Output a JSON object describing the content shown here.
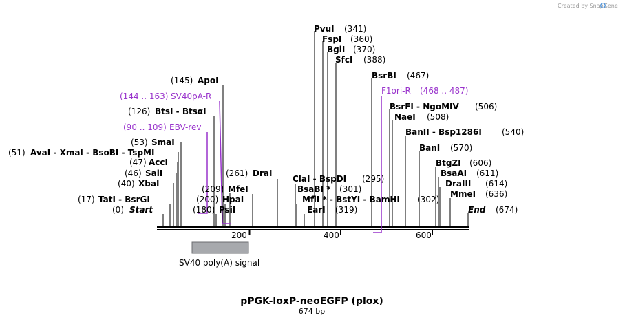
{
  "credit": "Created by SnapGene",
  "title": "pPGK-loxP-neoEGFP (plox)",
  "length_label": "674 bp",
  "axis": {
    "max_bp": 674,
    "ticks": [
      200,
      400,
      600
    ]
  },
  "feature": {
    "name": "SV40 poly(A) signal",
    "start": 76,
    "end": 199
  },
  "sites": [
    {
      "name": "AvaI - XmaI - BsoBI - TspMI",
      "pos_label": "(51)",
      "bp": 51
    },
    {
      "name": "AccI",
      "pos_label": "(47)",
      "bp": 47
    },
    {
      "name": "SalI",
      "pos_label": "(46)",
      "bp": 46
    },
    {
      "name": "XbaI",
      "pos_label": "(40)",
      "bp": 40
    },
    {
      "name": "TatI - BsrGI",
      "pos_label": "(17)",
      "bp": 17
    },
    {
      "name": "Start",
      "pos_label": "(0)",
      "bp": 0
    },
    {
      "name": "SmaI",
      "pos_label": "(53)",
      "bp": 53
    },
    {
      "name": "BtsI - BtsαI",
      "pos_label": "(126)",
      "bp": 126
    },
    {
      "name": "ApoI",
      "pos_label": "(145)",
      "bp": 145
    },
    {
      "name": "MfeI",
      "pos_label": "(209)",
      "bp": 209
    },
    {
      "name": "HpaI",
      "pos_label": "(200)",
      "bp": 200
    },
    {
      "name": "PsiI",
      "pos_label": "(180)",
      "bp": 180
    },
    {
      "name": "DraI",
      "pos_label": "(261)",
      "bp": 261
    },
    {
      "name": "ClaI - BspDI",
      "pos_label": "(295)",
      "bp": 295
    },
    {
      "name": "BsaBI *",
      "pos_label": "(301)",
      "bp": 301
    },
    {
      "name": "MflI * - BstYI - BamHI",
      "pos_label": "(302)",
      "bp": 302
    },
    {
      "name": "EarI",
      "pos_label": "(319)",
      "bp": 319
    },
    {
      "name": "PvuI",
      "pos_label": "(341)",
      "bp": 341
    },
    {
      "name": "FspI",
      "pos_label": "(360)",
      "bp": 360
    },
    {
      "name": "BglI",
      "pos_label": "(370)",
      "bp": 370
    },
    {
      "name": "SfcI",
      "pos_label": "(388)",
      "bp": 388
    },
    {
      "name": "BsrBI",
      "pos_label": "(467)",
      "bp": 467
    },
    {
      "name": "BsrFI - NgoMIV",
      "pos_label": "(506)",
      "bp": 506
    },
    {
      "name": "NaeI",
      "pos_label": "(508)",
      "bp": 508
    },
    {
      "name": "BanII - Bsp1286I",
      "pos_label": "(540)",
      "bp": 540
    },
    {
      "name": "BanI",
      "pos_label": "(570)",
      "bp": 570
    },
    {
      "name": "BtgZI",
      "pos_label": "(606)",
      "bp": 606
    },
    {
      "name": "BsaAI",
      "pos_label": "(611)",
      "bp": 611
    },
    {
      "name": "DraIII",
      "pos_label": "(614)",
      "bp": 614
    },
    {
      "name": "MmeI",
      "pos_label": "(636)",
      "bp": 636
    },
    {
      "name": "End",
      "pos_label": "(674)",
      "bp": 674
    }
  ],
  "primers": [
    {
      "name": "SV40pA-R",
      "range": "(144 .. 163)",
      "start": 144,
      "end": 163
    },
    {
      "name": "EBV-rev",
      "range": "(90 .. 109)",
      "start": 90,
      "end": 109
    },
    {
      "name": "F1ori-R",
      "range": "(468 .. 487)",
      "start": 468,
      "end": 487
    }
  ],
  "colors": {
    "primer": "#9933cc",
    "feature_fill": "#a7a9ad",
    "feature_stroke": "#6b6c70",
    "backbone": "#000000",
    "credit_icon": "#4a90d9"
  }
}
